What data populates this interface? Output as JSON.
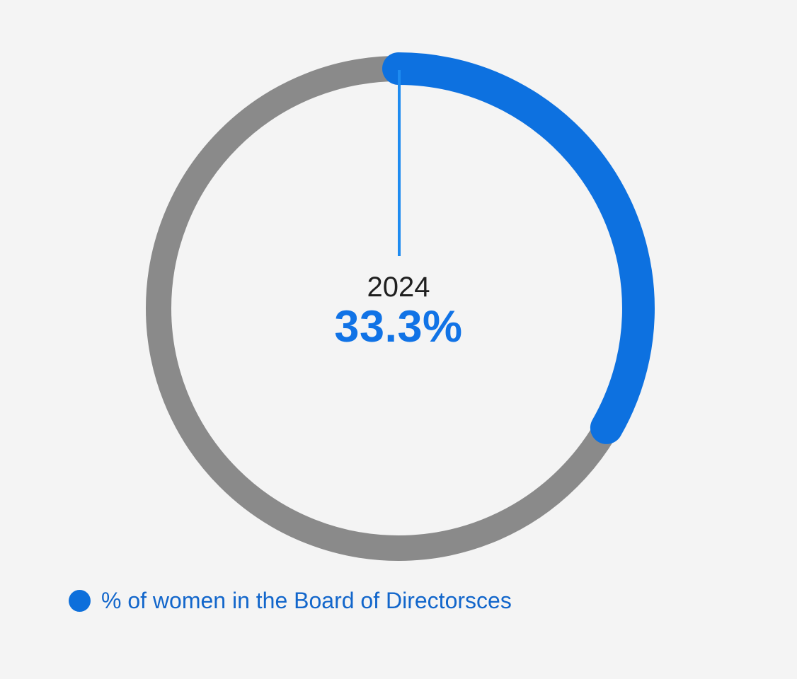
{
  "chart_data": {
    "type": "donut",
    "title": "",
    "series": [
      {
        "name": "% of women in the Board of Directorsces",
        "value": 33.3
      }
    ],
    "total": 100,
    "unit": "%",
    "center_labels": {
      "year": "2024",
      "value": "33.3%"
    },
    "legend": {
      "position": "bottom-left",
      "items": [
        {
          "label": "% of women in the Board of Directorsces"
        }
      ]
    },
    "layout": {
      "start_angle_deg": 0,
      "direction": "clockwise",
      "annotation_leader_line": true
    },
    "colors": {
      "segment": "#0d71e0",
      "track": "#8a8a8a",
      "leader_line": "#1e8bf0",
      "value_text": "#1173e6",
      "year_text": "#1f1f1f",
      "legend_marker": "#0d6fdb",
      "legend_text": "#1266cb",
      "background": "#f4f4f4"
    }
  }
}
